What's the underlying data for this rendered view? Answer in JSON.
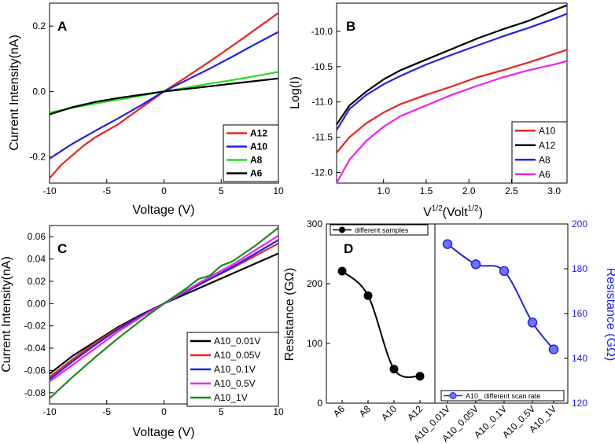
{
  "chart_data": [
    {
      "panel": "A",
      "type": "line",
      "xlabel": "Voltage (V)",
      "ylabel": "Current Intensity(nA)",
      "xlim": [
        -10,
        10
      ],
      "ylim": [
        -0.28,
        0.27
      ],
      "xticks": [
        -10,
        -5,
        0,
        5,
        10
      ],
      "yticks": [
        -0.2,
        0.0,
        0.2
      ],
      "ytick_labels": [
        "-0.2",
        "0.0",
        "0.2"
      ],
      "legend_position": "bottom-right",
      "legend_bold": true,
      "series": [
        {
          "name": "A12",
          "color": "#e8231f",
          "x": [
            -10,
            -9,
            -8,
            -7,
            -6,
            -5,
            -4,
            -3,
            -2,
            -1,
            0,
            2,
            4,
            6,
            8,
            10
          ],
          "y": [
            -0.265,
            -0.225,
            -0.195,
            -0.165,
            -0.14,
            -0.12,
            -0.1,
            -0.075,
            -0.05,
            -0.025,
            0.0,
            0.045,
            0.092,
            0.14,
            0.19,
            0.24
          ]
        },
        {
          "name": "A10",
          "color": "#1f23e8",
          "x": [
            -10,
            -8,
            -6,
            -4,
            -2,
            0,
            2,
            4,
            6,
            8,
            10
          ],
          "y": [
            -0.205,
            -0.16,
            -0.12,
            -0.082,
            -0.042,
            0.0,
            0.035,
            0.07,
            0.107,
            0.145,
            0.182
          ]
        },
        {
          "name": "A8",
          "color": "#22dd22",
          "x": [
            -10,
            -8,
            -6,
            -4,
            -2,
            0,
            2,
            4,
            6,
            8,
            10
          ],
          "y": [
            -0.065,
            -0.05,
            -0.037,
            -0.025,
            -0.013,
            0.0,
            0.012,
            0.024,
            0.035,
            0.047,
            0.06
          ]
        },
        {
          "name": "A6",
          "color": "#000000",
          "x": [
            -10,
            -8,
            -6,
            -4,
            -2,
            0,
            2,
            4,
            6,
            8,
            10
          ],
          "y": [
            -0.07,
            -0.048,
            -0.032,
            -0.02,
            -0.01,
            0.0,
            0.008,
            0.016,
            0.024,
            0.032,
            0.04
          ]
        }
      ]
    },
    {
      "panel": "B",
      "type": "line",
      "xlabel_main": "V",
      "xlabel_sup1": "1/2",
      "xlabel_mid": "(Volt",
      "xlabel_sup2": "1/2",
      "xlabel_end": ")",
      "ylabel": "Log(I)",
      "xlim": [
        0.45,
        3.15
      ],
      "ylim": [
        -12.15,
        -9.6
      ],
      "xticks": [
        1.0,
        1.5,
        2.0,
        2.5,
        3.0
      ],
      "xtick_labels": [
        "1.0",
        "1.5",
        "2.0",
        "2.5",
        "3.0"
      ],
      "yticks": [
        -12.0,
        -11.5,
        -11.0,
        -10.5,
        -10.0
      ],
      "ytick_labels": [
        "-12.0",
        "-11.5",
        "-11.0",
        "-10.5",
        "-10.0"
      ],
      "legend_position": "bottom-right",
      "series": [
        {
          "name": "A10",
          "color": "#e8231f",
          "x": [
            0.45,
            0.6,
            0.8,
            1.0,
            1.2,
            1.5,
            1.8,
            2.1,
            2.4,
            2.7,
            3.0,
            3.15
          ],
          "y": [
            -11.72,
            -11.5,
            -11.3,
            -11.15,
            -11.03,
            -10.9,
            -10.78,
            -10.65,
            -10.55,
            -10.44,
            -10.32,
            -10.26
          ]
        },
        {
          "name": "A12",
          "color": "#000000",
          "x": [
            0.45,
            0.6,
            0.8,
            1.0,
            1.2,
            1.5,
            1.8,
            2.1,
            2.4,
            2.7,
            3.0,
            3.15
          ],
          "y": [
            -11.32,
            -11.05,
            -10.85,
            -10.68,
            -10.55,
            -10.4,
            -10.25,
            -10.1,
            -9.97,
            -9.85,
            -9.7,
            -9.63
          ]
        },
        {
          "name": "A8",
          "color": "#1f23e8",
          "x": [
            0.45,
            0.6,
            0.8,
            1.0,
            1.2,
            1.5,
            1.8,
            2.1,
            2.4,
            2.7,
            3.0,
            3.15
          ],
          "y": [
            -11.4,
            -11.1,
            -10.9,
            -10.75,
            -10.63,
            -10.47,
            -10.33,
            -10.2,
            -10.07,
            -9.95,
            -9.82,
            -9.75
          ]
        },
        {
          "name": "A6",
          "color": "#ee22ee",
          "x": [
            0.45,
            0.6,
            0.8,
            1.0,
            1.2,
            1.5,
            1.8,
            2.1,
            2.4,
            2.7,
            3.0,
            3.15
          ],
          "y": [
            -12.15,
            -11.82,
            -11.55,
            -11.35,
            -11.2,
            -11.05,
            -10.9,
            -10.77,
            -10.65,
            -10.55,
            -10.47,
            -10.42
          ]
        }
      ]
    },
    {
      "panel": "C",
      "type": "line",
      "xlabel": "Voltage (V)",
      "ylabel": "Current Intensity(nA)",
      "xlim": [
        -10,
        10
      ],
      "ylim": [
        -0.09,
        0.07
      ],
      "xticks": [
        -10,
        -5,
        0,
        5,
        10
      ],
      "yticks": [
        -0.08,
        -0.06,
        -0.04,
        -0.02,
        0.0,
        0.02,
        0.04,
        0.06
      ],
      "ytick_labels": [
        "-0.08",
        "-0.06",
        "-0.04",
        "-0.02",
        "0.00",
        "0.02",
        "0.04",
        "0.06"
      ],
      "legend_position": "bottom-right",
      "series": [
        {
          "name": "A10_0.01V",
          "color": "#000000",
          "x": [
            -10,
            -8,
            -6,
            -4,
            -2,
            0,
            2,
            4,
            6,
            8,
            10
          ],
          "y": [
            -0.063,
            -0.047,
            -0.034,
            -0.021,
            -0.01,
            0.0,
            0.009,
            0.018,
            0.027,
            0.036,
            0.045
          ]
        },
        {
          "name": "A10_0.05V",
          "color": "#e8231f",
          "x": [
            -10,
            -8,
            -6,
            -4,
            -2,
            0,
            2,
            4,
            6,
            8,
            10
          ],
          "y": [
            -0.066,
            -0.05,
            -0.035,
            -0.022,
            -0.011,
            0.0,
            0.011,
            0.022,
            0.032,
            0.043,
            0.054
          ]
        },
        {
          "name": "A10_0.1V",
          "color": "#1f23e8",
          "x": [
            -10,
            -8,
            -6,
            -4,
            -2,
            0,
            2,
            4,
            6,
            8,
            10
          ],
          "y": [
            -0.068,
            -0.052,
            -0.037,
            -0.023,
            -0.011,
            0.0,
            0.011,
            0.022,
            0.033,
            0.045,
            0.057
          ]
        },
        {
          "name": "A10_0.5V",
          "color": "#ee22ee",
          "x": [
            -10,
            -8,
            -6,
            -4,
            -2,
            0,
            2,
            4,
            6,
            8,
            10
          ],
          "y": [
            -0.07,
            -0.055,
            -0.04,
            -0.025,
            -0.012,
            0.0,
            0.012,
            0.024,
            0.035,
            0.048,
            0.061
          ]
        },
        {
          "name": "A10_1V",
          "color": "#1a8a1a",
          "x": [
            -10,
            -8,
            -6,
            -4,
            -2,
            0,
            2,
            3,
            4,
            5,
            6,
            8,
            10
          ],
          "y": [
            -0.085,
            -0.066,
            -0.048,
            -0.031,
            -0.015,
            0.0,
            0.014,
            0.022,
            0.025,
            0.034,
            0.038,
            0.052,
            0.068
          ]
        }
      ]
    },
    {
      "panel": "D",
      "type": "scatter-line",
      "ylabel_left": "Resistance (GΩ)",
      "ylabel_right": "Resistance (GΩ)",
      "left": {
        "categories": [
          "A6",
          "A8",
          "A10",
          "A12"
        ],
        "values": [
          221,
          180,
          57,
          45
        ],
        "ylim": [
          0,
          300
        ],
        "yticks": [
          0,
          100,
          200,
          300
        ],
        "color": "#000000",
        "legend": "different samples"
      },
      "right": {
        "categories": [
          "A10_0.01V",
          "A10_0.05V",
          "A10_0.1V",
          "A10_0.5V",
          "A10_1V"
        ],
        "values": [
          191,
          182,
          179,
          156,
          144
        ],
        "ylim": [
          120,
          200
        ],
        "yticks": [
          120,
          140,
          160,
          180,
          200
        ],
        "color": "#1f23e8",
        "legend": "A10_ different scan rate"
      }
    }
  ],
  "panels": {
    "a": "A",
    "b": "B",
    "c": "C",
    "d": "D"
  }
}
